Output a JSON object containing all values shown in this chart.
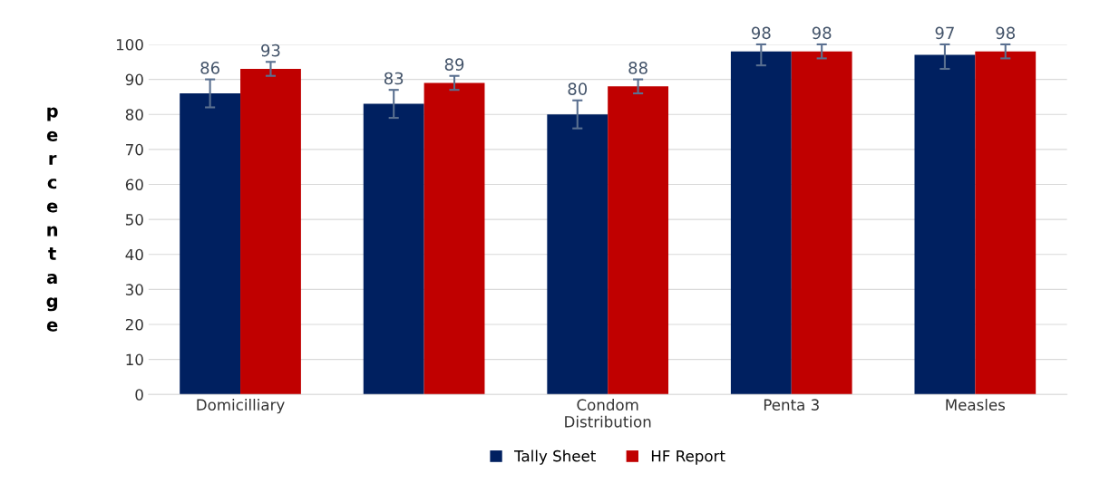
{
  "chart_data": {
    "type": "bar",
    "ylabel": "percentage",
    "categories": [
      "Domicilliary",
      null,
      "Condom Distribution",
      "Penta 3",
      "Measles"
    ],
    "series": [
      {
        "name": "Tally Sheet",
        "color": "#002060",
        "values": [
          86,
          83,
          80,
          98,
          97
        ],
        "errors": [
          4,
          4,
          4,
          [
            94,
            100
          ],
          [
            93,
            100
          ]
        ]
      },
      {
        "name": "HF Report",
        "color": "#c00000",
        "values": [
          93,
          89,
          88,
          98,
          98
        ],
        "errors": [
          2,
          2,
          2,
          2,
          2
        ]
      }
    ],
    "ylim": [
      0,
      100
    ],
    "yticks": [
      0,
      10,
      20,
      30,
      40,
      50,
      60,
      70,
      80,
      90,
      100
    ],
    "grid": "y",
    "legend": "bottom",
    "data_labels": true
  }
}
